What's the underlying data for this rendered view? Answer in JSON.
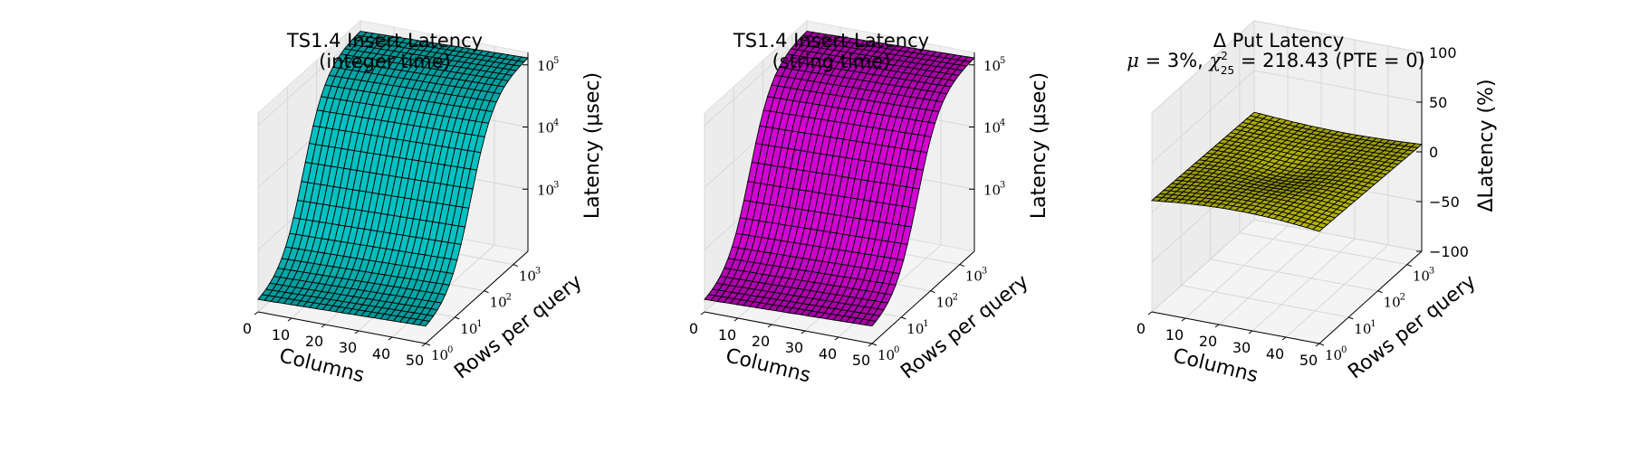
{
  "figure": {
    "caption": ""
  },
  "chart_data": [
    {
      "type": "surface3d",
      "title": "TS1.4 Insert Latency",
      "subtitle": "(integer time)",
      "xlabel": "Columns",
      "ylabel": "Rows per query",
      "zlabel": "Latency (μsec)",
      "x_ticks": [
        "0",
        "10",
        "20",
        "30",
        "40",
        "50"
      ],
      "y_ticks": [
        "10",
        "10",
        "10",
        "10"
      ],
      "y_tick_exponents": [
        "0",
        "1",
        "2",
        "3"
      ],
      "z_ticks": [
        "10",
        "10",
        "10"
      ],
      "z_tick_exponents": [
        "3",
        "4",
        "5"
      ],
      "xlim": [
        0,
        50
      ],
      "ylim_log10": [
        0,
        3.5
      ],
      "zlim_log10": [
        2,
        5.2
      ],
      "z_scale": "log",
      "surface_color": "#00b0b0",
      "surface_model": "log10(latency) rises steeply with log10(rows per query) and slightly with columns",
      "z_range_log10": [
        2.15,
        5.05
      ],
      "grid": true
    },
    {
      "type": "surface3d",
      "title": "TS1.4 Insert Latency",
      "subtitle": "(string time)",
      "xlabel": "Columns",
      "ylabel": "Rows per query",
      "zlabel": "Latency (μsec)",
      "x_ticks": [
        "0",
        "10",
        "20",
        "30",
        "40",
        "50"
      ],
      "y_ticks": [
        "10",
        "10",
        "10",
        "10"
      ],
      "y_tick_exponents": [
        "0",
        "1",
        "2",
        "3"
      ],
      "z_ticks": [
        "10",
        "10",
        "10"
      ],
      "z_tick_exponents": [
        "3",
        "4",
        "5"
      ],
      "xlim": [
        0,
        50
      ],
      "ylim_log10": [
        0,
        3.5
      ],
      "zlim_log10": [
        2,
        5.2
      ],
      "z_scale": "log",
      "surface_color": "#c000c0",
      "surface_model": "log10(latency) rises steeply with log10(rows per query) and slightly with columns",
      "z_range_log10": [
        2.15,
        5.05
      ],
      "grid": true
    },
    {
      "type": "surface3d",
      "title": "Δ Put Latency",
      "subtitle_parts": [
        "μ",
        " = 3%, ",
        "χ",
        "2",
        "25",
        " = 218.43 (PTE = 0)"
      ],
      "xlabel": "Columns",
      "ylabel": "Rows per query",
      "zlabel": "ΔLatency (%)",
      "x_ticks": [
        "0",
        "10",
        "20",
        "30",
        "40",
        "50"
      ],
      "y_ticks": [
        "10",
        "10",
        "10",
        "10"
      ],
      "y_tick_exponents": [
        "0",
        "1",
        "2",
        "3"
      ],
      "z_ticks": [
        "100",
        "50",
        "0",
        "−50",
        "−100"
      ],
      "z_tick_values": [
        100,
        50,
        0,
        -50,
        -100
      ],
      "xlim": [
        0,
        50
      ],
      "ylim_log10": [
        0,
        3.5
      ],
      "zlim": [
        -100,
        100
      ],
      "z_scale": "linear",
      "surface_color": "#c8c800",
      "surface_model": "nearly flat surface around 0 to +15 percent",
      "grid": true
    }
  ]
}
